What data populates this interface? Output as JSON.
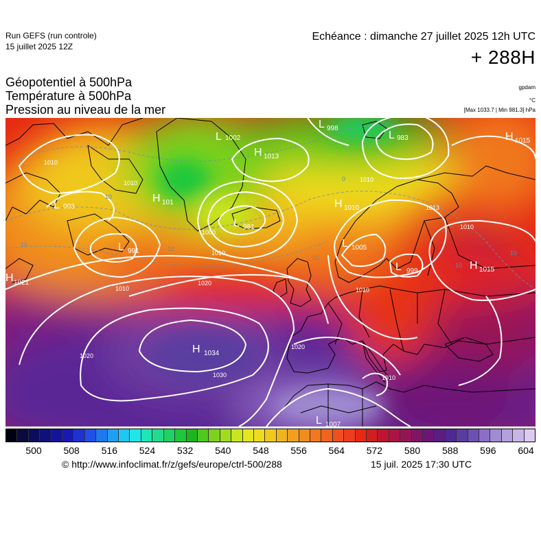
{
  "header": {
    "run_name": "Run GEFS (run controle)",
    "run_date": "15 juillet 2025 12Z",
    "valid_time": "Echéance : dimanche 27 juillet 2025 12h UTC",
    "forecast_hour": "+ 288H"
  },
  "titles": {
    "line1": "Géopotentiel à 500hPa",
    "line2": "Température à 500hPa",
    "line3": "Pression au niveau de la mer"
  },
  "units": {
    "geopotential": "gpdam",
    "temperature": "°C",
    "pressure_range": "[Max 1033.7 | Min 981.3] hPa"
  },
  "pressure_systems": [
    {
      "type": "H",
      "value": "1034"
    },
    {
      "type": "H",
      "value": "1021"
    },
    {
      "type": "H",
      "value": "1015"
    },
    {
      "type": "H",
      "value": "1015"
    },
    {
      "type": "H",
      "value": "1013"
    },
    {
      "type": "H",
      "value": "1010"
    },
    {
      "type": "H",
      "value": "101"
    },
    {
      "type": "L",
      "value": "981"
    },
    {
      "type": "L",
      "value": "991"
    },
    {
      "type": "L",
      "value": "1002"
    },
    {
      "type": "L",
      "value": "998"
    },
    {
      "type": "L",
      "value": "983"
    },
    {
      "type": "L",
      "value": "1005"
    },
    {
      "type": "L",
      "value": "999"
    },
    {
      "type": "L",
      "value": "1007"
    },
    {
      "type": "L",
      "value": "003"
    }
  ],
  "isobar_labels": [
    "1010",
    "1010",
    "1010",
    "1010",
    "1010",
    "1010",
    "1020",
    "1020",
    "1020",
    "1030",
    "1013",
    "1000",
    "1010",
    "1010"
  ],
  "temperature_labels": [
    "10",
    "10",
    "10",
    "10",
    "10",
    "10",
    "0"
  ],
  "colorbar": {
    "colors": [
      "#000014",
      "#0a0a3c",
      "#0c0c5c",
      "#10107a",
      "#141496",
      "#1818b4",
      "#1e32d2",
      "#2050e6",
      "#1e78f0",
      "#1ea0f0",
      "#1ec8f0",
      "#1ee6e6",
      "#1ee6b4",
      "#1edc8c",
      "#1ed264",
      "#1ec83c",
      "#1eb41e",
      "#50c81e",
      "#7cd21e",
      "#a0dc1e",
      "#c8e61e",
      "#e6e61e",
      "#f0dc1e",
      "#f0c81e",
      "#f0b41e",
      "#f0a01e",
      "#f08c1e",
      "#f0781e",
      "#f0641e",
      "#f0501e",
      "#f03c1e",
      "#e62814",
      "#d21e1e",
      "#be1432",
      "#aa1446",
      "#961456",
      "#821466",
      "#6e1478",
      "#5a1e82",
      "#502896",
      "#5a3ca0",
      "#6e50b4",
      "#8c6ec8",
      "#a08cd2",
      "#b4a0dc",
      "#c8b4e6",
      "#dcc8f0"
    ],
    "tick_labels": [
      "500",
      "508",
      "516",
      "524",
      "532",
      "540",
      "548",
      "556",
      "564",
      "572",
      "580",
      "588",
      "596",
      "604"
    ]
  },
  "footer": {
    "credit": "© http://www.infoclimat.fr/z/gefs/europe/ctrl-500/288",
    "timestamp": "15 juil. 2025 17:30 UTC"
  }
}
